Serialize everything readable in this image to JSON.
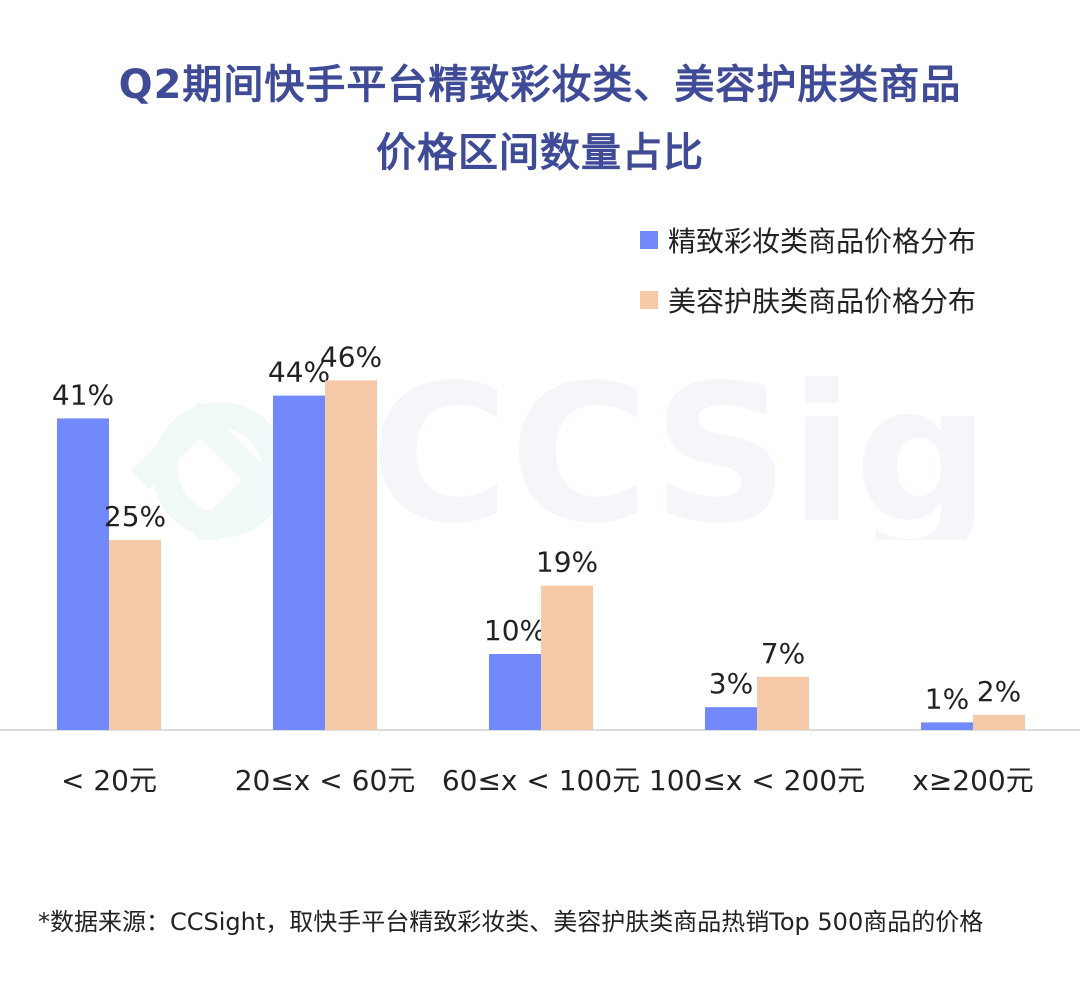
{
  "title_line1": "Q2期间快手平台精致彩妆类、美容护肤类商品",
  "title_line2": "价格区间数量占比",
  "watermark_text": "CCSight",
  "footnote": "*数据来源：CCSight，取快手平台精致彩妆类、美容护肤类商品热销Top 500商品的价格",
  "chart_data": {
    "type": "bar",
    "title": "Q2期间快手平台精致彩妆类、美容护肤类商品价格区间数量占比",
    "categories": [
      "< 20元",
      "20≤x < 60元",
      "60≤x < 100元",
      "100≤x < 200元",
      "x≥200元"
    ],
    "series": [
      {
        "name": "精致彩妆类商品价格分布",
        "values": [
          41,
          44,
          10,
          3,
          1
        ],
        "labels": [
          "41%",
          "44%",
          "10%",
          "3%",
          "1%"
        ],
        "color": "#7289f9"
      },
      {
        "name": "美容护肤类商品价格分布",
        "values": [
          25,
          46,
          19,
          7,
          2
        ],
        "labels": [
          "25%",
          "46%",
          "19%",
          "7%",
          "2%"
        ],
        "color": "#f6c9a9"
      }
    ],
    "ylim": [
      0,
      50
    ],
    "legend": "top-right",
    "grid": false
  }
}
